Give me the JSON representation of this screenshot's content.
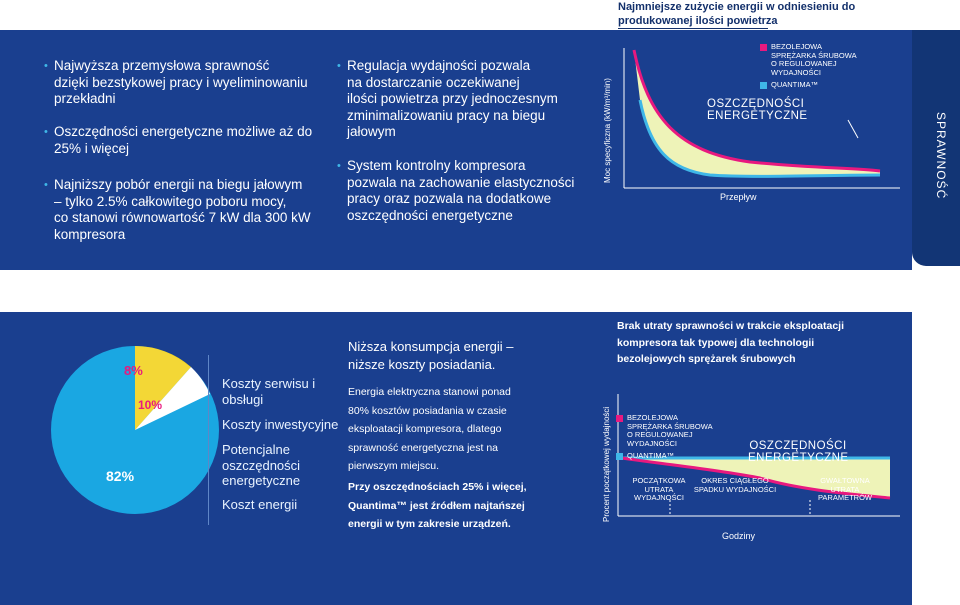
{
  "header": {
    "title_line1": "Najmniejsze zużycie energii w odniesieniu do",
    "title_line2": "produkowanej ilości powietrza"
  },
  "side_tab": {
    "label": "SPRAWNOŚĆ"
  },
  "left_bullets": [
    {
      "lines": [
        "Najwyższa przemysłowa sprawność",
        "dzięki bezstykowej pracy i wyeliminowaniu",
        "przekładni"
      ]
    },
    {
      "lines": [
        "Oszczędności energetyczne możliwe aż do",
        "25% i więcej"
      ]
    },
    {
      "lines": [
        "Najniższy pobór energii na biegu jałowym",
        "– tylko 2.5% całkowitego poboru mocy,",
        "co stanowi równowartość 7 kW dla 300 kW",
        "kompresora"
      ]
    }
  ],
  "middle_bullets": [
    {
      "lines": [
        "Regulacja wydajności pozwala",
        "na dostarczanie oczekiwanej",
        "ilości powietrza przy jednoczesnym",
        "zminimalizowaniu pracy na biegu",
        "jałowym"
      ]
    },
    {
      "lines": [
        "System kontrolny kompresora",
        "pozwala na zachowanie elastyczności",
        "pracy oraz pozwala na dodatkowe",
        "oszczędności energetyczne"
      ]
    }
  ],
  "top_chart": {
    "y_label": "Moc specyficzna (kW/m³/min)",
    "x_label": "Przepływ",
    "legend_oil_lines": [
      "BEZOLEJOWA",
      "SPRĘŻARKA ŚRUBOWA",
      "O REGULOWANEJ",
      "WYDAJNOŚCI"
    ],
    "legend_quantima": "QUANTIMA™",
    "savings_lines": [
      "OSZCZĘDNOŚCI",
      "ENERGETYCZNE"
    ],
    "colors": {
      "oil_free": "#e8197f",
      "quantima": "#3fb7e8",
      "savings_fill": "#eef3b8"
    }
  },
  "pie": {
    "slices": [
      {
        "label": "82%",
        "value": 82,
        "color": "#1aa7e2"
      },
      {
        "label": "8%",
        "value": 8,
        "color": "#f2d21b"
      },
      {
        "label": "10%",
        "value": 10,
        "color": "#ffffff"
      }
    ],
    "legend": [
      "Koszty serwisu i obsługi",
      "Koszty inwestycyjne",
      "Potencjalne oszczędności energetyczne",
      "Koszt energii"
    ]
  },
  "middle_text": {
    "title_lines": [
      "Niższa konsumpcja energii –",
      "niższe koszty posiadania."
    ],
    "body_lines": [
      "Energia elektryczna stanowi ponad",
      "80% kosztów posiadania w czasie",
      "eksploatacji kompresora, dlatego",
      "sprawność energetyczna jest na",
      "pierwszym miejscu."
    ],
    "bold_lines": [
      "Przy oszczędnościach 25% i więcej,",
      "Quantima™ jest źródłem najtańszej",
      "energii w tym zakresie urządzeń."
    ]
  },
  "bottom_chart": {
    "title_lines": [
      "Brak utraty sprawności w trakcie eksploatacji",
      "kompresora tak typowej dla technologii",
      "bezolejowych sprężarek śrubowych"
    ],
    "y_label": "Procent początkowej wydajności",
    "x_label": "Godziny",
    "legend_oil_lines": [
      "BEZOLEJOWA",
      "SPRĘŻARKA ŚRUBOWA",
      "O REGULOWANEJ",
      "WYDAJNOŚCI"
    ],
    "legend_quantima": "QUANTIMA™",
    "savings_lines": [
      "OSZCZĘDNOŚCI",
      "ENERGETYCZNE"
    ],
    "phase1_lines": [
      "POCZĄTKOWA",
      "UTRATA",
      "WYDAJNOŚCI"
    ],
    "phase2_lines": [
      "OKRES CIĄGŁEGO",
      "SPADKU WYDAJNOŚCI"
    ],
    "phase3_lines": [
      "GWAŁTOWNA",
      "UTRATA",
      "PARAMETRÓW"
    ]
  }
}
